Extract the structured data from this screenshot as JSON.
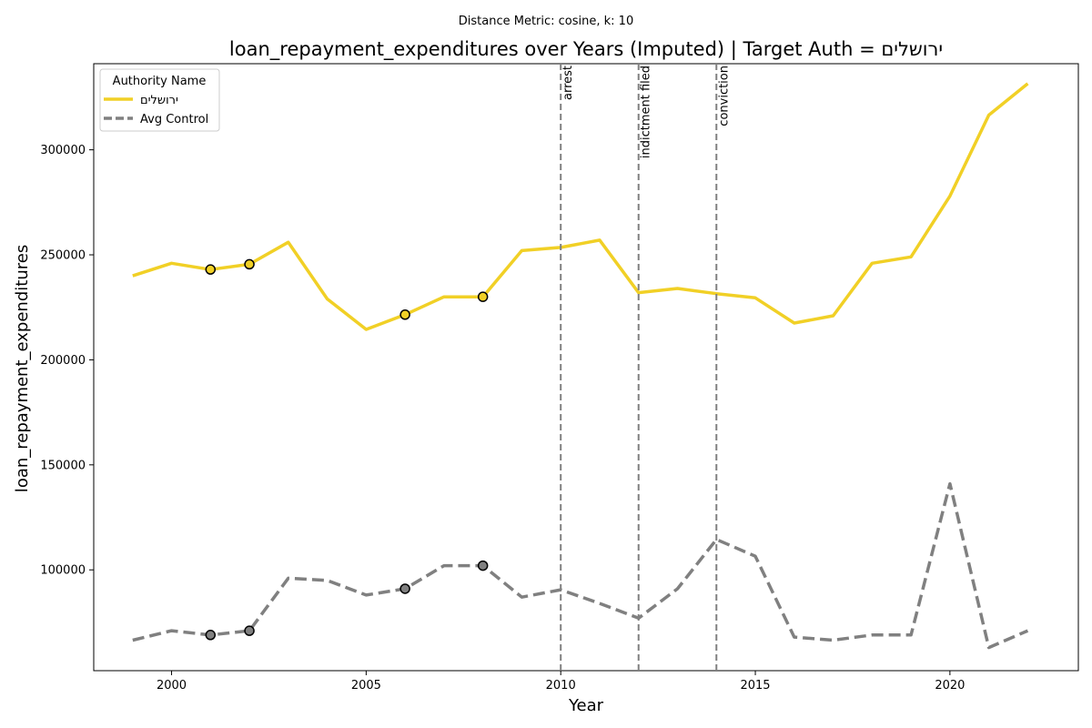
{
  "chart_data": {
    "type": "line",
    "suptitle": "Distance Metric: cosine, k: 10",
    "title": "loan_repayment_expenditures over Years (Imputed) | Target Auth = ירושלים",
    "xlabel": "Year",
    "ylabel": "loan_repayment_expenditures",
    "xlim": [
      1998.0,
      2023.3
    ],
    "ylim": [
      52000,
      341000
    ],
    "xticks": [
      2000,
      2005,
      2010,
      2015,
      2020
    ],
    "yticks": [
      100000,
      150000,
      200000,
      250000,
      300000
    ],
    "x": [
      1999,
      2000,
      2001,
      2002,
      2003,
      2004,
      2005,
      2006,
      2007,
      2008,
      2009,
      2010,
      2011,
      2012,
      2013,
      2014,
      2015,
      2016,
      2017,
      2018,
      2019,
      2020,
      2021,
      2022
    ],
    "series": [
      {
        "name": "ירושלים",
        "color": "#f1d026",
        "style": "solid",
        "values": [
          240000,
          246000,
          243000,
          245500,
          256000,
          229000,
          214500,
          221500,
          230000,
          230000,
          252000,
          253500,
          257000,
          232000,
          234000,
          231500,
          229500,
          217500,
          221000,
          246000,
          249000,
          278000,
          316500,
          331500
        ],
        "imputed_markers": [
          {
            "x": 2001,
            "y": 243000
          },
          {
            "x": 2002,
            "y": 245500
          },
          {
            "x": 2006,
            "y": 221500
          },
          {
            "x": 2008,
            "y": 230000
          }
        ]
      },
      {
        "name": "Avg Control",
        "color": "#808080",
        "style": "dashed",
        "values": [
          66500,
          71000,
          69000,
          71000,
          96000,
          95000,
          88000,
          91000,
          102000,
          102000,
          87000,
          90500,
          84000,
          77000,
          91000,
          114500,
          106500,
          68000,
          66500,
          69000,
          69000,
          141000,
          63000,
          71000
        ],
        "imputed_markers": [
          {
            "x": 2001,
            "y": 69000
          },
          {
            "x": 2002,
            "y": 71000
          },
          {
            "x": 2006,
            "y": 91000
          },
          {
            "x": 2008,
            "y": 102000
          }
        ]
      }
    ],
    "events": [
      {
        "x": 2010,
        "label": "arrest"
      },
      {
        "x": 2012,
        "label": "indictment filed"
      },
      {
        "x": 2014,
        "label": "conviction"
      }
    ],
    "legend": {
      "title": "Authority Name",
      "placement": "top-left",
      "entries": [
        "ירושלים",
        "Avg Control"
      ]
    },
    "grid": false
  }
}
